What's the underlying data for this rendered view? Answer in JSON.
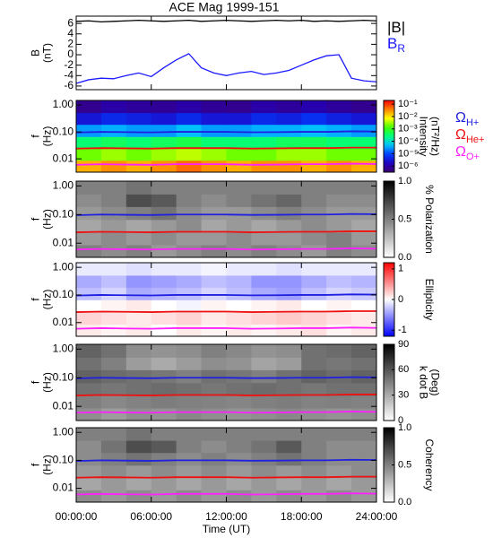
{
  "chart_data": [
    {
      "type": "line",
      "title": "ACE Mag 1999-151",
      "ylabel": [
        "B",
        "(nT)"
      ],
      "x": [
        0,
        1,
        2,
        3,
        4,
        5,
        6,
        7,
        8,
        9,
        10,
        11,
        12,
        13,
        14,
        15,
        16,
        17,
        18,
        19,
        20,
        21,
        22,
        23,
        24
      ],
      "ylim": [
        -6.7,
        7.4
      ],
      "yticks": [
        6,
        4,
        2,
        0,
        -2,
        -4,
        -6
      ],
      "series": [
        {
          "name": "|B|",
          "color": "#000000",
          "values": [
            6.4,
            6.5,
            6.3,
            6.4,
            6.5,
            6.6,
            6.5,
            6.4,
            6.5,
            6.6,
            6.4,
            6.5,
            6.6,
            6.5,
            6.4,
            6.5,
            6.6,
            6.5,
            6.6,
            6.4,
            6.5,
            6.4,
            6.5,
            6.6,
            6.5
          ]
        },
        {
          "name": "B",
          "name_sub": "R",
          "color": "#1a1aff",
          "values": [
            -5.5,
            -4.8,
            -4.5,
            -4.6,
            -4.0,
            -3.5,
            -4.2,
            -2.5,
            -1.0,
            0.2,
            -2.5,
            -3.5,
            -4.0,
            -3.5,
            -3.2,
            -3.8,
            -3.5,
            -3.0,
            -2.0,
            -1.0,
            -0.2,
            0.0,
            -4.5,
            -5.0,
            -5.2
          ]
        }
      ]
    },
    {
      "type": "heatmap",
      "ylabel": [
        "f",
        "(Hz)"
      ],
      "ylog": true,
      "ylim": [
        0.0032,
        1.47
      ],
      "yticks": [
        {
          "value": 1,
          "label": "1.00"
        },
        {
          "value": 0.1,
          "label": "0.10"
        },
        {
          "value": 0.01,
          "label": "0.01"
        }
      ],
      "x_bins": [
        0,
        2,
        4,
        6,
        8,
        10,
        12,
        14,
        16,
        18,
        20,
        22,
        24
      ],
      "y_bins": [
        0.0032,
        0.0088,
        0.024,
        0.067,
        0.19,
        0.52,
        1.47
      ],
      "z": [
        [
          0.02,
          0.03,
          0.02,
          0.03,
          0.05,
          0.03,
          0.02,
          0.03,
          0.03,
          0.02,
          0.03,
          0.02
        ],
        [
          0.002,
          0.003,
          0.002,
          0.003,
          0.004,
          0.003,
          0.002,
          0.002,
          0.003,
          0.003,
          0.002,
          0.002
        ],
        [
          0.0003,
          0.0004,
          0.0003,
          0.0004,
          0.0005,
          0.0003,
          0.0003,
          0.0003,
          0.0004,
          0.0004,
          0.0003,
          0.0003
        ],
        [
          3e-05,
          4e-05,
          3e-05,
          3e-05,
          5e-05,
          3e-05,
          3e-05,
          4e-05,
          4e-05,
          5e-05,
          4e-05,
          3e-05
        ],
        [
          3e-06,
          5e-06,
          4e-06,
          3e-06,
          5e-06,
          3e-06,
          3e-06,
          5e-06,
          4e-06,
          6e-06,
          4e-06,
          3e-06
        ],
        [
          6e-07,
          1e-06,
          8e-07,
          7e-07,
          1e-06,
          7e-07,
          6e-07,
          1e-06,
          8e-07,
          1.2e-06,
          8e-07,
          6e-07
        ]
      ],
      "colormap": "rainbow",
      "zlog": true,
      "zlim": [
        3.2e-07,
        0.2
      ],
      "zticks": [
        {
          "value": 0.1,
          "label": "10⁻¹"
        },
        {
          "value": 0.01,
          "label": "10⁻²"
        },
        {
          "value": 0.001,
          "label": "10⁻³"
        },
        {
          "value": 0.0001,
          "label": "10⁻⁴"
        },
        {
          "value": 1e-05,
          "label": "10⁻⁵"
        },
        {
          "value": 1e-06,
          "label": "10⁻⁶"
        }
      ],
      "colorbar_label": [
        "Intensity",
        "(nT²/Hz)"
      ],
      "gyro_x": [
        0,
        2,
        4,
        6,
        8,
        10,
        12,
        14,
        16,
        18,
        20,
        22,
        24
      ],
      "series": [
        {
          "name": "Ω",
          "name_sub": "H+",
          "color": "#2020e0",
          "values": [
            0.095,
            0.1,
            0.098,
            0.096,
            0.1,
            0.1,
            0.1,
            0.097,
            0.098,
            0.1,
            0.1,
            0.105,
            0.103
          ]
        },
        {
          "name": "Ω",
          "name_sub": "He+",
          "color": "#ee1111",
          "values": [
            0.024,
            0.025,
            0.0245,
            0.024,
            0.025,
            0.025,
            0.025,
            0.024,
            0.0245,
            0.025,
            0.025,
            0.026,
            0.026
          ]
        },
        {
          "name": "Ω",
          "name_sub": "O+",
          "color": "#ff22ff",
          "values": [
            0.006,
            0.0063,
            0.0061,
            0.006,
            0.0063,
            0.0063,
            0.0063,
            0.006,
            0.0061,
            0.0063,
            0.0063,
            0.0066,
            0.0064
          ]
        }
      ]
    },
    {
      "type": "heatmap",
      "ylabel": [
        "f",
        "(Hz)"
      ],
      "ylog": true,
      "ylim": [
        0.0032,
        1.47
      ],
      "yticks": [
        {
          "value": 1,
          "label": "1.00"
        },
        {
          "value": 0.1,
          "label": "0.10"
        },
        {
          "value": 0.01,
          "label": "0.01"
        }
      ],
      "x_bins": [
        0,
        2,
        4,
        6,
        8,
        10,
        12,
        14,
        16,
        18,
        20,
        22,
        24
      ],
      "y_bins": [
        0.0032,
        0.0088,
        0.024,
        0.067,
        0.19,
        0.52,
        1.47
      ],
      "z": [
        [
          0.5,
          0.45,
          0.5,
          0.4,
          0.45,
          0.5,
          0.45,
          0.5,
          0.45,
          0.4,
          0.5,
          0.45
        ],
        [
          0.4,
          0.45,
          0.4,
          0.45,
          0.4,
          0.4,
          0.45,
          0.4,
          0.4,
          0.45,
          0.5,
          0.4
        ],
        [
          0.35,
          0.4,
          0.35,
          0.4,
          0.45,
          0.35,
          0.4,
          0.35,
          0.4,
          0.45,
          0.4,
          0.35
        ],
        [
          0.4,
          0.45,
          0.5,
          0.55,
          0.45,
          0.4,
          0.4,
          0.45,
          0.5,
          0.45,
          0.4,
          0.4
        ],
        [
          0.45,
          0.5,
          0.7,
          0.65,
          0.5,
          0.45,
          0.5,
          0.55,
          0.6,
          0.5,
          0.45,
          0.45
        ],
        [
          0.5,
          0.5,
          0.55,
          0.5,
          0.5,
          0.5,
          0.5,
          0.5,
          0.5,
          0.5,
          0.5,
          0.5
        ]
      ],
      "colormap": "gray",
      "zlim": [
        0,
        1
      ],
      "zticks": [
        {
          "value": 0,
          "label": "0.0"
        },
        {
          "value": 0.5,
          "label": "0.5"
        },
        {
          "value": 1,
          "label": "1.0"
        }
      ],
      "colorbar_label": [
        "% Polarization"
      ]
    },
    {
      "type": "heatmap",
      "ylabel": [
        "f",
        "(Hz)"
      ],
      "ylog": true,
      "ylim": [
        0.0032,
        1.47
      ],
      "yticks": [
        {
          "value": 1,
          "label": "1.00"
        },
        {
          "value": 0.1,
          "label": "0.10"
        },
        {
          "value": 0.01,
          "label": "0.01"
        }
      ],
      "x_bins": [
        0,
        2,
        4,
        6,
        8,
        10,
        12,
        14,
        16,
        18,
        20,
        22,
        24
      ],
      "y_bins": [
        0.0032,
        0.0088,
        0.024,
        0.067,
        0.19,
        0.52,
        1.47
      ],
      "z": [
        [
          0.1,
          0.05,
          0.1,
          0,
          0.1,
          0.05,
          0.1,
          0.05,
          0.1,
          0.15,
          0.05,
          0.1
        ],
        [
          0.2,
          0.15,
          0.1,
          0.15,
          0.2,
          0.1,
          0.15,
          0.2,
          0.25,
          0.2,
          0.15,
          0.1
        ],
        [
          0,
          0.05,
          0.1,
          0,
          -0.05,
          0.05,
          0,
          0.05,
          0.1,
          0,
          0.05,
          0
        ],
        [
          -0.3,
          -0.2,
          -0.4,
          -0.35,
          -0.3,
          -0.2,
          -0.3,
          -0.4,
          -0.45,
          -0.3,
          -0.2,
          -0.25
        ],
        [
          -0.4,
          -0.3,
          -0.5,
          -0.45,
          -0.4,
          -0.3,
          -0.35,
          -0.5,
          -0.5,
          -0.4,
          -0.3,
          -0.35
        ],
        [
          -0.1,
          -0.1,
          -0.15,
          -0.1,
          -0.1,
          -0.05,
          -0.1,
          -0.1,
          -0.15,
          -0.1,
          -0.1,
          -0.1
        ]
      ],
      "colormap": "bwr",
      "zlim": [
        -1.2,
        1.2
      ],
      "zticks": [
        1,
        0,
        -1
      ],
      "colorbar_label": [
        "Ellipticity"
      ]
    },
    {
      "type": "heatmap",
      "ylabel": [
        "f",
        "(Hz)"
      ],
      "ylog": true,
      "ylim": [
        0.0032,
        1.47
      ],
      "yticks": [
        {
          "value": 1,
          "label": "1.00"
        },
        {
          "value": 0.1,
          "label": "0.10"
        },
        {
          "value": 0.01,
          "label": "0.01"
        }
      ],
      "x_bins": [
        0,
        2,
        4,
        6,
        8,
        10,
        12,
        14,
        16,
        18,
        20,
        22,
        24
      ],
      "y_bins": [
        0.0032,
        0.0088,
        0.024,
        0.067,
        0.19,
        0.52,
        1.47
      ],
      "z": [
        [
          40,
          35,
          40,
          38,
          42,
          40,
          38,
          40,
          42,
          40,
          38,
          40
        ],
        [
          45,
          42,
          44,
          46,
          45,
          44,
          43,
          45,
          46,
          44,
          45,
          44
        ],
        [
          50,
          48,
          50,
          52,
          50,
          48,
          50,
          52,
          50,
          48,
          50,
          50
        ],
        [
          55,
          52,
          50,
          48,
          45,
          50,
          48,
          45,
          50,
          55,
          52,
          55
        ],
        [
          50,
          45,
          35,
          30,
          35,
          40,
          38,
          32,
          35,
          50,
          48,
          50
        ],
        [
          55,
          50,
          40,
          38,
          40,
          45,
          42,
          38,
          40,
          50,
          52,
          55
        ]
      ],
      "colormap": "gray",
      "zlim": [
        0,
        90
      ],
      "zticks": [
        90,
        60,
        30,
        0
      ],
      "colorbar_label": [
        "k dot B",
        "(Deg)"
      ]
    },
    {
      "type": "heatmap",
      "ylabel": [
        "f",
        "(Hz)"
      ],
      "ylog": true,
      "ylim": [
        0.0032,
        1.47
      ],
      "yticks": [
        {
          "value": 1,
          "label": "1.00"
        },
        {
          "value": 0.1,
          "label": "0.10"
        },
        {
          "value": 0.01,
          "label": "0.01"
        }
      ],
      "x_bins": [
        0,
        2,
        4,
        6,
        8,
        10,
        12,
        14,
        16,
        18,
        20,
        22,
        24
      ],
      "y_bins": [
        0.0032,
        0.0088,
        0.024,
        0.067,
        0.19,
        0.52,
        1.47
      ],
      "z": [
        [
          0.45,
          0.4,
          0.45,
          0.4,
          0.45,
          0.4,
          0.45,
          0.4,
          0.45,
          0.4,
          0.45,
          0.4
        ],
        [
          0.35,
          0.4,
          0.35,
          0.4,
          0.35,
          0.4,
          0.35,
          0.4,
          0.35,
          0.4,
          0.35,
          0.4
        ],
        [
          0.4,
          0.45,
          0.4,
          0.45,
          0.4,
          0.45,
          0.4,
          0.45,
          0.4,
          0.45,
          0.4,
          0.45
        ],
        [
          0.45,
          0.5,
          0.55,
          0.5,
          0.45,
          0.5,
          0.45,
          0.5,
          0.55,
          0.5,
          0.45,
          0.45
        ],
        [
          0.45,
          0.55,
          0.7,
          0.65,
          0.5,
          0.45,
          0.5,
          0.55,
          0.65,
          0.5,
          0.45,
          0.45
        ],
        [
          0.5,
          0.5,
          0.55,
          0.5,
          0.5,
          0.5,
          0.5,
          0.5,
          0.5,
          0.5,
          0.5,
          0.5
        ]
      ],
      "colormap": "gray",
      "zlim": [
        0,
        1
      ],
      "zticks": [
        {
          "value": 0,
          "label": "0.0"
        },
        {
          "value": 0.5,
          "label": "0.5"
        },
        {
          "value": 1,
          "label": "1.0"
        }
      ],
      "colorbar_label": [
        "Coherency"
      ],
      "xlim": [
        0,
        24
      ],
      "xticks": [
        {
          "value": 0,
          "label": "00:00:00"
        },
        {
          "value": 6,
          "label": "06:00:00"
        },
        {
          "value": 12,
          "label": "12:00:00"
        },
        {
          "value": 18,
          "label": "18:00:00"
        },
        {
          "value": 24,
          "label": "24:00:00"
        }
      ],
      "xlabel": "Time (UT)"
    }
  ]
}
